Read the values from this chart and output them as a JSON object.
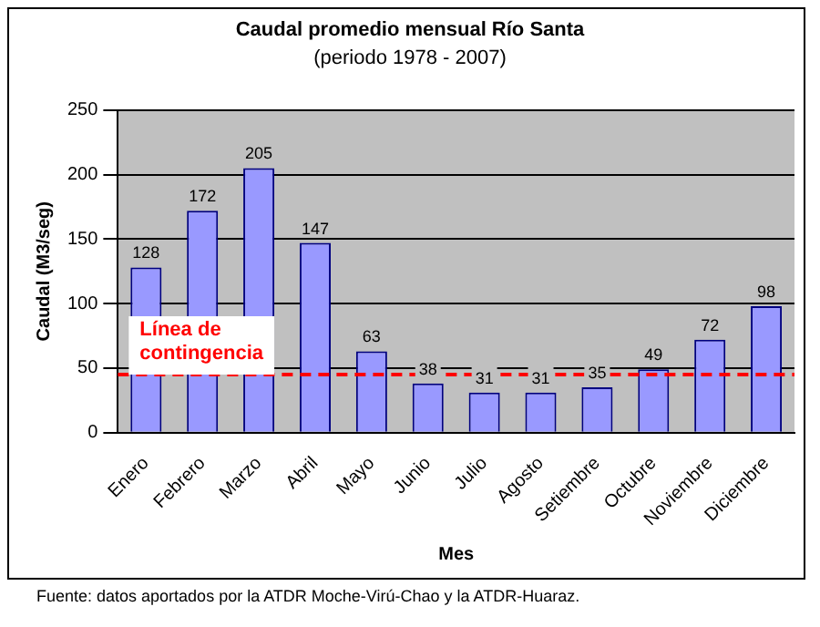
{
  "chart_data": {
    "type": "bar",
    "title": "Caudal promedio mensual Río Santa",
    "subtitle": "(periodo 1978 - 2007)",
    "xlabel": "Mes",
    "ylabel": "Caudal (M3/seg)",
    "categories": [
      "Enero",
      "Febrero",
      "Marzo",
      "Abril",
      "Mayo",
      "Junio",
      "Julio",
      "Agosto",
      "Setiembre",
      "Octubre",
      "Noviembre",
      "Diciembre"
    ],
    "values": [
      128,
      172,
      205,
      147,
      63,
      38,
      31,
      31,
      35,
      49,
      72,
      98
    ],
    "color": "#9999ff",
    "ylim": [
      0,
      250
    ],
    "yticks": [
      0,
      50,
      100,
      150,
      200,
      250
    ],
    "grid": "y",
    "legend": false,
    "data_labels": true,
    "ref_lines": [
      {
        "axis": "y",
        "value": 45,
        "label": "Línea de contingencia",
        "color": "#ff0000",
        "line_style": "dashed"
      }
    ],
    "annotations": [
      "Fuente: datos aportados por la ATDR Moche-Virú-Chao y la ATDR-Huaraz."
    ]
  }
}
